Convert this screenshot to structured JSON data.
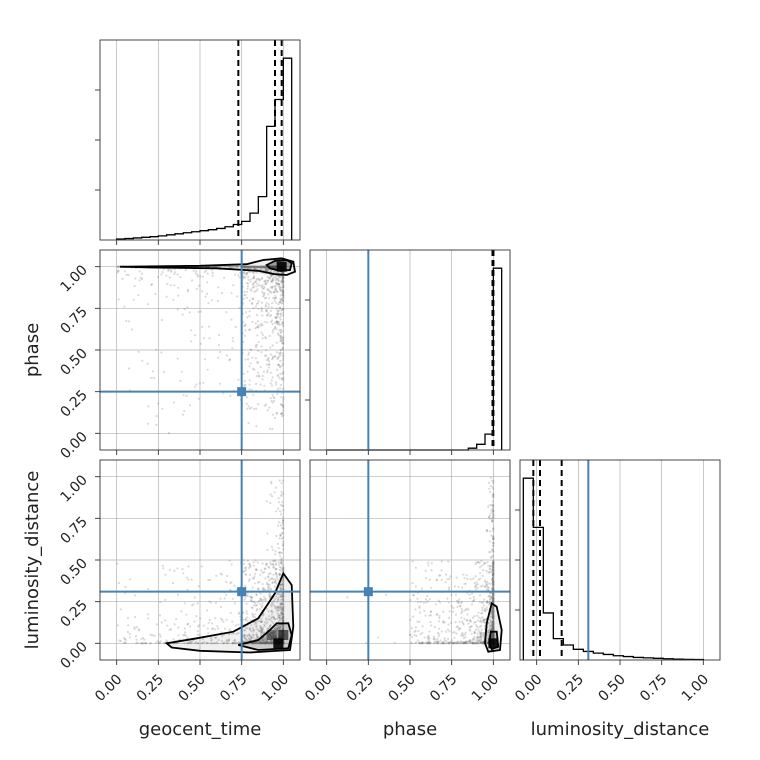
{
  "chart_data": {
    "type": "corner",
    "parameters": [
      "geocent_time",
      "phase",
      "luminosity_distance"
    ],
    "labels": [
      "geocent_time",
      "phase",
      "luminosity_distance"
    ],
    "truths": {
      "geocent_time": 0.75,
      "phase": 0.25,
      "luminosity_distance": 0.31
    },
    "truth_color": "#4682b4",
    "ticks": [
      "0.00",
      "0.25",
      "0.50",
      "0.75",
      "1.00"
    ],
    "tick_values": [
      0,
      0.25,
      0.5,
      0.75,
      1.0
    ],
    "ranges": {
      "geocent_time": [
        -0.1,
        1.1
      ],
      "phase": [
        -0.1,
        1.1
      ],
      "luminosity_distance": [
        -0.1,
        1.1
      ]
    },
    "histograms": {
      "geocent_time": {
        "bin_edges": [
          0.0,
          0.05,
          0.1,
          0.15,
          0.2,
          0.25,
          0.3,
          0.35,
          0.4,
          0.45,
          0.5,
          0.55,
          0.6,
          0.65,
          0.7,
          0.75,
          0.8,
          0.85,
          0.9,
          0.95,
          1.0,
          1.05
        ],
        "counts": [
          0.005,
          0.007,
          0.01,
          0.013,
          0.016,
          0.02,
          0.025,
          0.03,
          0.035,
          0.04,
          0.045,
          0.05,
          0.056,
          0.064,
          0.075,
          0.09,
          0.13,
          0.21,
          0.55,
          0.68,
          0.88
        ],
        "quantiles": [
          0.73,
          0.95,
          0.99
        ]
      },
      "phase": {
        "bin_edges": [
          0.0,
          0.05,
          0.1,
          0.15,
          0.2,
          0.25,
          0.3,
          0.35,
          0.4,
          0.45,
          0.5,
          0.55,
          0.6,
          0.65,
          0.7,
          0.75,
          0.8,
          0.85,
          0.9,
          0.95,
          1.0,
          1.05
        ],
        "counts": [
          0,
          0,
          0,
          0,
          0,
          0,
          0,
          0,
          0,
          0,
          0,
          0,
          0,
          0,
          0,
          0,
          0,
          0.008,
          0.025,
          0.07,
          0.8
        ],
        "quantiles": [
          0.995,
          1.0,
          1.0
        ]
      },
      "luminosity_distance": {
        "bin_edges": [
          -0.08,
          -0.02,
          0.04,
          0.1,
          0.16,
          0.22,
          0.28,
          0.34,
          0.4,
          0.46,
          0.52,
          0.58,
          0.64,
          0.7,
          0.76,
          0.82,
          0.88,
          0.94,
          1.0
        ],
        "counts": [
          0.85,
          0.62,
          0.22,
          0.1,
          0.07,
          0.05,
          0.04,
          0.032,
          0.026,
          0.02,
          0.016,
          0.012,
          0.01,
          0.008,
          0.006,
          0.004,
          0.003,
          0.002
        ],
        "quantiles": [
          -0.02,
          0.02,
          0.15
        ]
      }
    },
    "grid": true
  }
}
